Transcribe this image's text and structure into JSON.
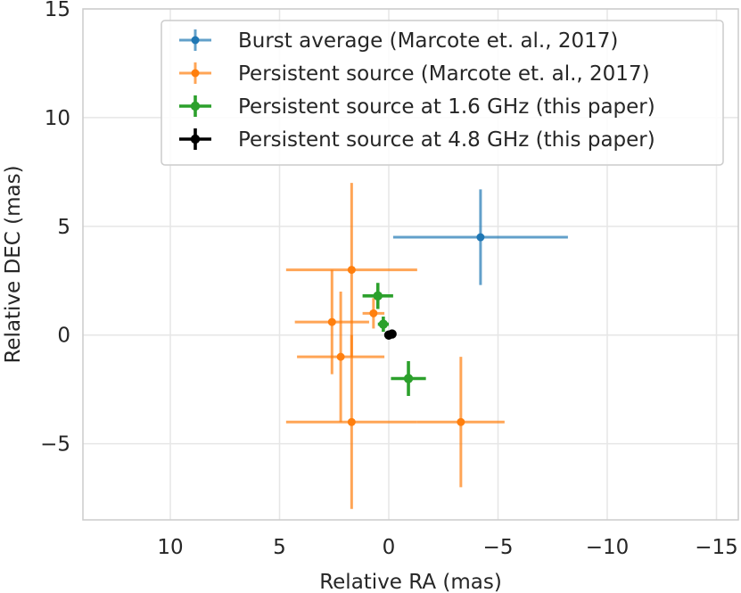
{
  "chart_data": {
    "type": "scatter",
    "title": "",
    "xlabel": "Relative RA (mas)",
    "ylabel": "Relative DEC (mas)",
    "xlim": [
      14,
      -16
    ],
    "ylim": [
      -8.5,
      15
    ],
    "xticks": [
      10,
      5,
      0,
      -5,
      -10,
      -15
    ],
    "xtick_labels": [
      "10",
      "5",
      "0",
      "−5",
      "−10",
      "−15"
    ],
    "yticks": [
      -5,
      0,
      5,
      10,
      15
    ],
    "ytick_labels": [
      "−5",
      "0",
      "5",
      "10",
      "15"
    ],
    "grid": true,
    "legend_position": "top-right",
    "series": [
      {
        "name": "Burst average (Marcote et. al., 2017)",
        "color": "#1f77b4",
        "points": [
          {
            "x": -4.2,
            "y": 4.5,
            "xerr": 4.0,
            "yerr": 2.2
          }
        ]
      },
      {
        "name": "Persistent source (Marcote et. al., 2017)",
        "color": "#ff7f0e",
        "points": [
          {
            "x": 1.7,
            "y": 3.0,
            "xerr": 3.0,
            "yerr": 4.0
          },
          {
            "x": 0.7,
            "y": 1.0,
            "xerr": 0.5,
            "yerr": 0.7
          },
          {
            "x": 2.6,
            "y": 0.6,
            "xerr": 1.7,
            "yerr": 2.4
          },
          {
            "x": 2.2,
            "y": -1.0,
            "xerr": 2.0,
            "yerr": 3.0
          },
          {
            "x": 1.7,
            "y": -4.0,
            "xerr": 3.0,
            "yerr": 4.0
          },
          {
            "x": -3.3,
            "y": -4.0,
            "xerr": 2.0,
            "yerr": 3.0
          }
        ]
      },
      {
        "name": "Persistent source at 1.6 GHz (this paper)",
        "color": "#2ca02c",
        "points": [
          {
            "x": 0.5,
            "y": 1.8,
            "xerr": 0.7,
            "yerr": 0.6
          },
          {
            "x": 0.25,
            "y": 0.5,
            "xerr": 0.25,
            "yerr": 0.35
          },
          {
            "x": -0.9,
            "y": -2.0,
            "xerr": 0.8,
            "yerr": 0.8
          }
        ]
      },
      {
        "name": "Persistent source at 4.8 GHz (this paper)",
        "color": "#000000",
        "points": [
          {
            "x": 0.0,
            "y": 0.0,
            "xerr": 0.15,
            "yerr": 0.15
          },
          {
            "x": -0.15,
            "y": 0.05,
            "xerr": 0.1,
            "yerr": 0.1
          }
        ]
      }
    ]
  }
}
